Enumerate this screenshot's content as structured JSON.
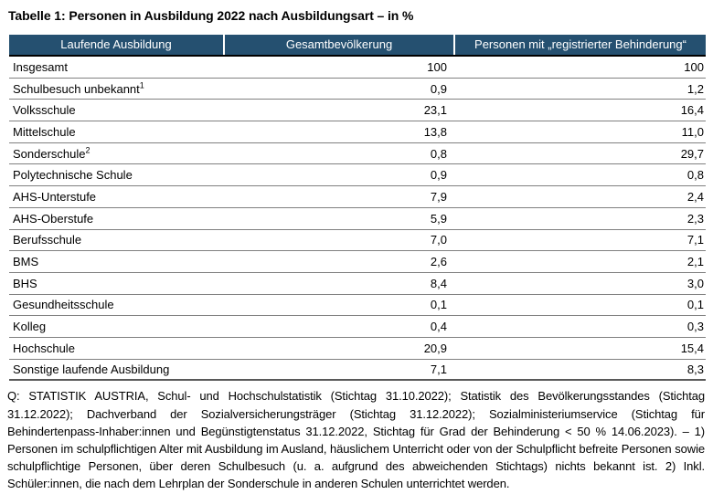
{
  "title": "Tabelle 1: Personen in Ausbildung 2022 nach Ausbildungsart – in %",
  "colors": {
    "header_bg": "#255070",
    "header_text": "#ffffff",
    "row_divider": "#808080",
    "header_divider": "#000000"
  },
  "table": {
    "columns": [
      "Laufende Ausbildung",
      "Gesamtbevölkerung",
      "Personen mit „registrierter Behinderung“"
    ],
    "rows": [
      {
        "label": "Insgesamt",
        "gesamtbevoelkerung": "100",
        "behinderung": "100"
      },
      {
        "label": "Schulbesuch unbekannt",
        "sup": "1",
        "gesamtbevoelkerung": "0,9",
        "behinderung": "1,2"
      },
      {
        "label": "Volksschule",
        "gesamtbevoelkerung": "23,1",
        "behinderung": "16,4"
      },
      {
        "label": "Mittelschule",
        "gesamtbevoelkerung": "13,8",
        "behinderung": "11,0"
      },
      {
        "label": "Sonderschule",
        "sup": "2",
        "gesamtbevoelkerung": "0,8",
        "behinderung": "29,7"
      },
      {
        "label": "Polytechnische Schule",
        "gesamtbevoelkerung": "0,9",
        "behinderung": "0,8"
      },
      {
        "label": "AHS-Unterstufe",
        "gesamtbevoelkerung": "7,9",
        "behinderung": "2,4"
      },
      {
        "label": "AHS-Oberstufe",
        "gesamtbevoelkerung": "5,9",
        "behinderung": "2,3"
      },
      {
        "label": "Berufsschule",
        "gesamtbevoelkerung": "7,0",
        "behinderung": "7,1"
      },
      {
        "label": "BMS",
        "gesamtbevoelkerung": "2,6",
        "behinderung": "2,1"
      },
      {
        "label": "BHS",
        "gesamtbevoelkerung": "8,4",
        "behinderung": "3,0"
      },
      {
        "label": "Gesundheitsschule",
        "gesamtbevoelkerung": "0,1",
        "behinderung": "0,1"
      },
      {
        "label": "Kolleg",
        "gesamtbevoelkerung": "0,4",
        "behinderung": "0,3"
      },
      {
        "label": "Hochschule",
        "gesamtbevoelkerung": "20,9",
        "behinderung": "15,4"
      },
      {
        "label": "Sonstige laufende Ausbildung",
        "gesamtbevoelkerung": "7,1",
        "behinderung": "8,3"
      }
    ]
  },
  "footnote": "Q: STATISTIK AUSTRIA, Schul- und Hochschulstatistik (Stichtag 31.10.2022); Statistik des Bevölkerungsstandes (Stichtag 31.12.2022); Dachverband der Sozialversicherungsträger (Stichtag 31.12.2022); Sozialministeriumservice (Stichtag für Behindertenpass-Inhaber:innen und Begünstigtenstatus 31.12.2022, Stichtag für Grad der Behinderung < 50 % 14.06.2023). – 1) Personen im schulpflichtigen Alter mit Ausbildung im Ausland, häuslichem Unterricht oder von der Schulpflicht befreite Personen sowie schulpflichtige Personen, über deren Schulbesuch (u. a. aufgrund des abweichenden Stichtags) nichts bekannt ist. 2) Inkl. Schüler:innen, die nach dem Lehrplan der Sonderschule in anderen Schulen unterrichtet werden."
}
